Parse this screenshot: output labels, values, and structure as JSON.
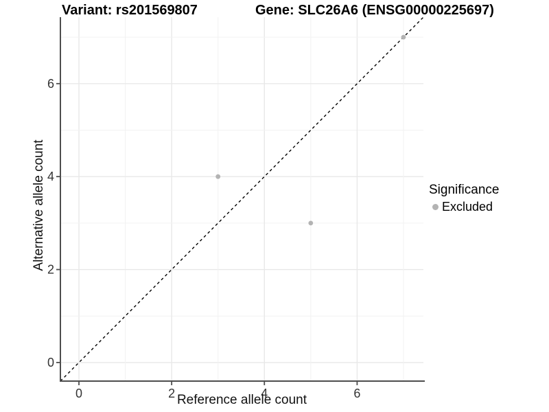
{
  "chart_data": {
    "type": "scatter",
    "title_left": "Variant: rs201569807",
    "title_right": "Gene: SLC26A6 (ENSG00000225697)",
    "xlabel": "Reference allele count",
    "ylabel": "Alternative allele count",
    "xlim": [
      -0.4,
      7.43
    ],
    "ylim": [
      -0.4,
      7.43
    ],
    "xticks": [
      0,
      2,
      4,
      6
    ],
    "yticks": [
      0,
      2,
      4,
      6
    ],
    "grid_positions": [
      0,
      1,
      2,
      3,
      4,
      5,
      6,
      7
    ],
    "grid": true,
    "identity_line": {
      "style": "dashed",
      "slope": 1,
      "intercept": 0,
      "color": "#000000"
    },
    "series": [
      {
        "name": "Excluded",
        "color": "#b3b3b3",
        "points": [
          {
            "x": 3,
            "y": 4
          },
          {
            "x": 5,
            "y": 3
          },
          {
            "x": 7,
            "y": 7
          }
        ]
      }
    ],
    "legend": {
      "title": "Significance",
      "position": "right",
      "items": [
        {
          "label": "Excluded",
          "color": "#b3b3b3"
        }
      ]
    },
    "colors": {
      "grid_major": "#e8e8e8",
      "grid_minor": "#f2f2f2",
      "axis": "#4d4d4d",
      "tick_text": "#333333",
      "background": "#ffffff"
    }
  }
}
